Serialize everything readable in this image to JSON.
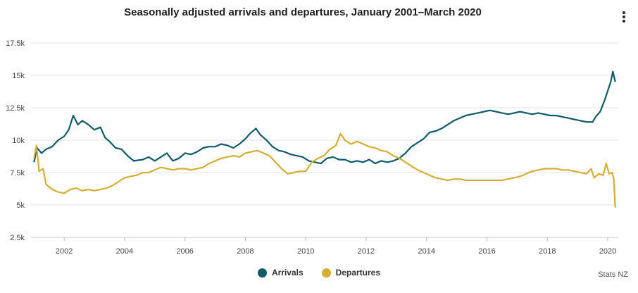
{
  "chart_data": {
    "type": "line",
    "title": "Seasonally adjusted arrivals and departures, January 2001–March 2020",
    "xlabel": "",
    "ylabel": "",
    "xlim": [
      2000.9,
      2020.35
    ],
    "ylim": [
      2500,
      17500
    ],
    "y_ticks": [
      2500,
      5000,
      7500,
      10000,
      12500,
      15000,
      17500
    ],
    "y_tick_labels": [
      "2.5k",
      "5k",
      "7.5k",
      "10k",
      "12.5k",
      "15k",
      "17.5k"
    ],
    "x_ticks": [
      2002,
      2004,
      2006,
      2008,
      2010,
      2012,
      2014,
      2016,
      2018,
      2020
    ],
    "x_tick_labels": [
      "2002",
      "2004",
      "2006",
      "2008",
      "2010",
      "2012",
      "2014",
      "2016",
      "2018",
      "2020"
    ],
    "grid": "horizontal",
    "legend_position": "bottom-center",
    "series": [
      {
        "name": "Arrivals",
        "color": "#0f5a6b",
        "points": [
          [
            2001.0,
            8300
          ],
          [
            2001.1,
            9400
          ],
          [
            2001.25,
            9000
          ],
          [
            2001.4,
            9300
          ],
          [
            2001.6,
            9500
          ],
          [
            2001.8,
            10000
          ],
          [
            2002.0,
            10300
          ],
          [
            2002.15,
            10800
          ],
          [
            2002.3,
            11900
          ],
          [
            2002.45,
            11200
          ],
          [
            2002.6,
            11500
          ],
          [
            2002.8,
            11200
          ],
          [
            2003.0,
            10800
          ],
          [
            2003.2,
            11000
          ],
          [
            2003.35,
            10200
          ],
          [
            2003.5,
            9900
          ],
          [
            2003.7,
            9400
          ],
          [
            2003.9,
            9300
          ],
          [
            2004.1,
            8800
          ],
          [
            2004.3,
            8400
          ],
          [
            2004.6,
            8500
          ],
          [
            2004.8,
            8700
          ],
          [
            2005.0,
            8400
          ],
          [
            2005.2,
            8700
          ],
          [
            2005.4,
            9000
          ],
          [
            2005.6,
            8400
          ],
          [
            2005.8,
            8600
          ],
          [
            2006.0,
            9000
          ],
          [
            2006.2,
            8900
          ],
          [
            2006.4,
            9100
          ],
          [
            2006.6,
            9400
          ],
          [
            2006.8,
            9500
          ],
          [
            2007.0,
            9500
          ],
          [
            2007.2,
            9700
          ],
          [
            2007.4,
            9600
          ],
          [
            2007.6,
            9400
          ],
          [
            2007.8,
            9700
          ],
          [
            2008.0,
            10100
          ],
          [
            2008.15,
            10500
          ],
          [
            2008.35,
            10900
          ],
          [
            2008.5,
            10400
          ],
          [
            2008.7,
            10000
          ],
          [
            2008.9,
            9500
          ],
          [
            2009.1,
            9200
          ],
          [
            2009.3,
            9100
          ],
          [
            2009.5,
            8900
          ],
          [
            2009.7,
            8800
          ],
          [
            2009.9,
            8700
          ],
          [
            2010.1,
            8400
          ],
          [
            2010.3,
            8300
          ],
          [
            2010.5,
            8200
          ],
          [
            2010.7,
            8600
          ],
          [
            2010.9,
            8700
          ],
          [
            2011.1,
            8500
          ],
          [
            2011.3,
            8500
          ],
          [
            2011.5,
            8300
          ],
          [
            2011.7,
            8400
          ],
          [
            2011.9,
            8300
          ],
          [
            2012.1,
            8500
          ],
          [
            2012.3,
            8200
          ],
          [
            2012.5,
            8400
          ],
          [
            2012.7,
            8300
          ],
          [
            2012.9,
            8400
          ],
          [
            2013.1,
            8600
          ],
          [
            2013.3,
            9000
          ],
          [
            2013.5,
            9500
          ],
          [
            2013.7,
            9800
          ],
          [
            2013.9,
            10100
          ],
          [
            2014.1,
            10600
          ],
          [
            2014.3,
            10700
          ],
          [
            2014.5,
            10900
          ],
          [
            2014.7,
            11200
          ],
          [
            2014.9,
            11500
          ],
          [
            2015.1,
            11700
          ],
          [
            2015.3,
            11900
          ],
          [
            2015.5,
            12000
          ],
          [
            2015.7,
            12100
          ],
          [
            2015.9,
            12200
          ],
          [
            2016.1,
            12300
          ],
          [
            2016.3,
            12200
          ],
          [
            2016.5,
            12100
          ],
          [
            2016.7,
            12000
          ],
          [
            2016.9,
            12100
          ],
          [
            2017.1,
            12200
          ],
          [
            2017.3,
            12100
          ],
          [
            2017.5,
            12000
          ],
          [
            2017.7,
            12100
          ],
          [
            2017.9,
            12000
          ],
          [
            2018.1,
            11900
          ],
          [
            2018.3,
            11900
          ],
          [
            2018.5,
            11800
          ],
          [
            2018.7,
            11700
          ],
          [
            2018.9,
            11600
          ],
          [
            2019.1,
            11500
          ],
          [
            2019.3,
            11400
          ],
          [
            2019.5,
            11400
          ],
          [
            2019.6,
            11800
          ],
          [
            2019.75,
            12200
          ],
          [
            2019.9,
            13100
          ],
          [
            2020.0,
            13800
          ],
          [
            2020.1,
            14500
          ],
          [
            2020.17,
            15300
          ],
          [
            2020.25,
            14500
          ]
        ]
      },
      {
        "name": "Departures",
        "color": "#d4ae35",
        "points": [
          [
            2001.0,
            8600
          ],
          [
            2001.08,
            9600
          ],
          [
            2001.17,
            7600
          ],
          [
            2001.3,
            7800
          ],
          [
            2001.4,
            6600
          ],
          [
            2001.6,
            6200
          ],
          [
            2001.8,
            6000
          ],
          [
            2002.0,
            5900
          ],
          [
            2002.2,
            6200
          ],
          [
            2002.4,
            6300
          ],
          [
            2002.6,
            6100
          ],
          [
            2002.8,
            6200
          ],
          [
            2003.0,
            6100
          ],
          [
            2003.2,
            6200
          ],
          [
            2003.4,
            6300
          ],
          [
            2003.6,
            6500
          ],
          [
            2003.8,
            6800
          ],
          [
            2004.0,
            7100
          ],
          [
            2004.2,
            7200
          ],
          [
            2004.4,
            7300
          ],
          [
            2004.6,
            7500
          ],
          [
            2004.8,
            7500
          ],
          [
            2005.0,
            7700
          ],
          [
            2005.2,
            7900
          ],
          [
            2005.4,
            7800
          ],
          [
            2005.6,
            7700
          ],
          [
            2005.8,
            7800
          ],
          [
            2006.0,
            7800
          ],
          [
            2006.2,
            7700
          ],
          [
            2006.4,
            7800
          ],
          [
            2006.6,
            7900
          ],
          [
            2006.8,
            8200
          ],
          [
            2007.0,
            8400
          ],
          [
            2007.2,
            8600
          ],
          [
            2007.4,
            8700
          ],
          [
            2007.6,
            8800
          ],
          [
            2007.8,
            8700
          ],
          [
            2008.0,
            9000
          ],
          [
            2008.2,
            9100
          ],
          [
            2008.4,
            9200
          ],
          [
            2008.6,
            9000
          ],
          [
            2008.8,
            8800
          ],
          [
            2009.0,
            8300
          ],
          [
            2009.2,
            7800
          ],
          [
            2009.4,
            7400
          ],
          [
            2009.6,
            7500
          ],
          [
            2009.8,
            7600
          ],
          [
            2010.0,
            7600
          ],
          [
            2010.2,
            8300
          ],
          [
            2010.4,
            8600
          ],
          [
            2010.6,
            8800
          ],
          [
            2010.8,
            9300
          ],
          [
            2011.0,
            9600
          ],
          [
            2011.15,
            10500
          ],
          [
            2011.3,
            10000
          ],
          [
            2011.5,
            9700
          ],
          [
            2011.7,
            9900
          ],
          [
            2011.9,
            9700
          ],
          [
            2012.1,
            9500
          ],
          [
            2012.3,
            9400
          ],
          [
            2012.5,
            9200
          ],
          [
            2012.7,
            9100
          ],
          [
            2012.9,
            8800
          ],
          [
            2013.1,
            8600
          ],
          [
            2013.3,
            8300
          ],
          [
            2013.5,
            8000
          ],
          [
            2013.7,
            7700
          ],
          [
            2013.9,
            7500
          ],
          [
            2014.1,
            7300
          ],
          [
            2014.3,
            7100
          ],
          [
            2014.5,
            7000
          ],
          [
            2014.7,
            6900
          ],
          [
            2014.9,
            7000
          ],
          [
            2015.1,
            7000
          ],
          [
            2015.3,
            6900
          ],
          [
            2015.5,
            6900
          ],
          [
            2015.7,
            6900
          ],
          [
            2015.9,
            6900
          ],
          [
            2016.1,
            6900
          ],
          [
            2016.3,
            6900
          ],
          [
            2016.5,
            6900
          ],
          [
            2016.7,
            7000
          ],
          [
            2016.9,
            7100
          ],
          [
            2017.1,
            7200
          ],
          [
            2017.3,
            7400
          ],
          [
            2017.5,
            7600
          ],
          [
            2017.7,
            7700
          ],
          [
            2017.9,
            7800
          ],
          [
            2018.1,
            7800
          ],
          [
            2018.3,
            7800
          ],
          [
            2018.5,
            7700
          ],
          [
            2018.7,
            7700
          ],
          [
            2018.9,
            7600
          ],
          [
            2019.1,
            7500
          ],
          [
            2019.3,
            7400
          ],
          [
            2019.45,
            7800
          ],
          [
            2019.55,
            7100
          ],
          [
            2019.7,
            7400
          ],
          [
            2019.85,
            7300
          ],
          [
            2019.95,
            8200
          ],
          [
            2020.05,
            7400
          ],
          [
            2020.15,
            7500
          ],
          [
            2020.2,
            7000
          ],
          [
            2020.25,
            4800
          ]
        ]
      }
    ]
  },
  "ui": {
    "credit": "Stats NZ"
  }
}
